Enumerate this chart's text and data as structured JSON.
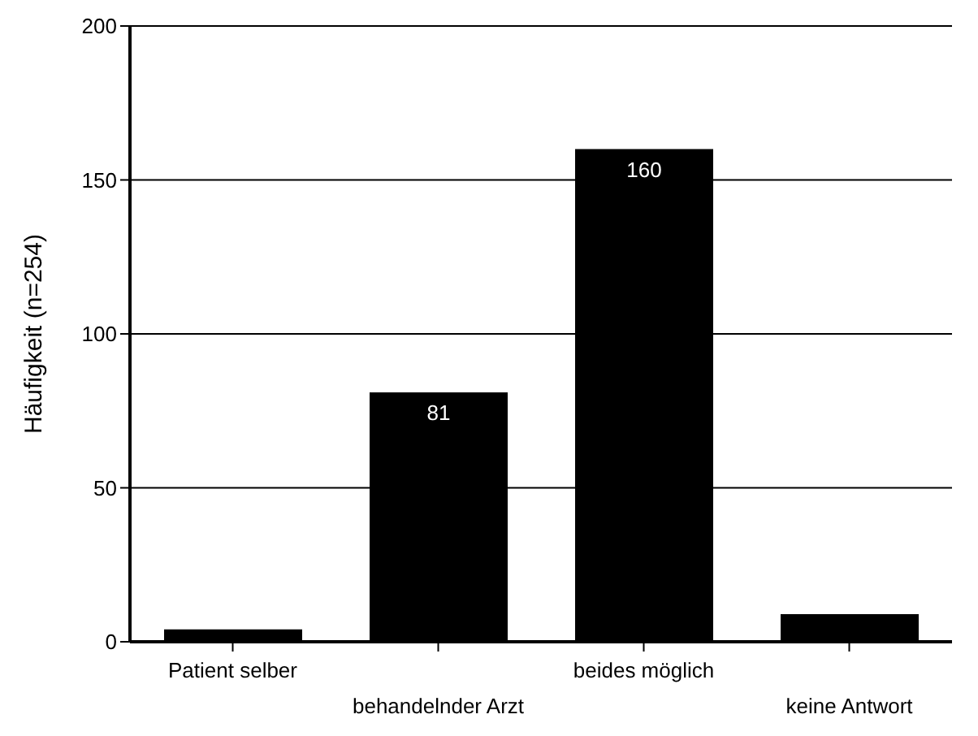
{
  "chart_data": {
    "type": "bar",
    "ylabel": "Häufigkeit (n=254)",
    "categories": [
      "Patient selber",
      "behandelnder Arzt",
      "beides möglich",
      "keine Antwort"
    ],
    "values": [
      4,
      81,
      160,
      9
    ],
    "color": "#000000",
    "value_labels": [
      null,
      "81",
      "160",
      null
    ],
    "ylim": [
      0,
      200
    ],
    "yticks": [
      0,
      50,
      100,
      150,
      200
    ],
    "grid": "y"
  }
}
